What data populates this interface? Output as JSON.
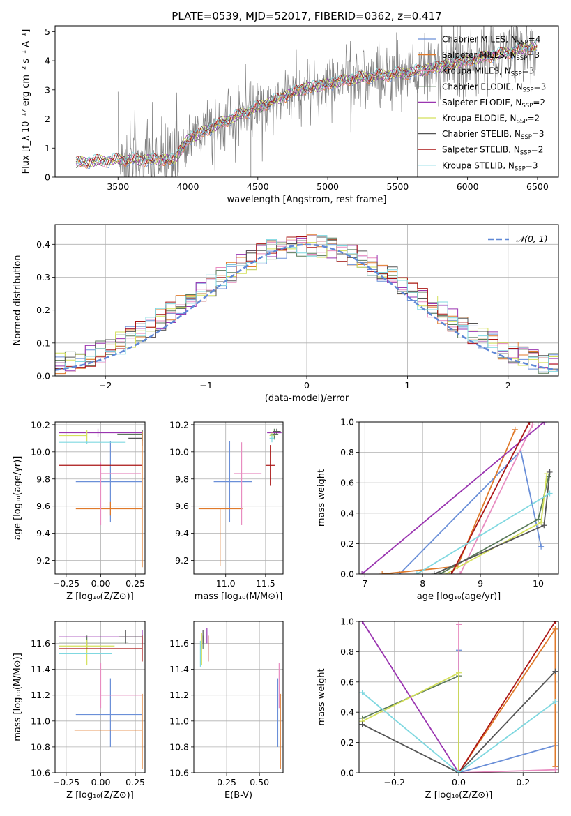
{
  "figure": {
    "title": "PLATE=0539, MJD=52017, FIBERID=0362, z=0.417"
  },
  "colors": {
    "Chabrier MILES": "#6a8fd8",
    "Salpeter MILES": "#e07a2a",
    "Kroupa MILES": "#e88cc0",
    "Chabrier ELODIE": "#5a7a5a",
    "Salpeter ELODIE": "#9a35b0",
    "Kroupa ELODIE": "#d4e05a",
    "Chabrier STELIB": "#555555",
    "Salpeter STELIB": "#aa1515",
    "Kroupa STELIB": "#7fd8e0",
    "data": "#808080",
    "normal": "#5f88d6"
  },
  "chart_data": [
    {
      "id": "spectrum",
      "type": "line",
      "xlabel": "wavelength [Angstrom, rest frame]",
      "ylabel": "Flux [f_λ 10⁻¹⁷ erg cm⁻² s⁻¹ A⁻¹]",
      "xlim": [
        3050,
        6650
      ],
      "ylim": [
        0,
        5.2
      ],
      "xticks": [
        3500,
        4000,
        4500,
        5000,
        5500,
        6000,
        6500
      ],
      "yticks": [
        0,
        1,
        2,
        3,
        4,
        5
      ],
      "grid": false,
      "legend_position": "top-right",
      "legend": [
        "Chabrier MILES, N_SSP=4",
        "Salpeter MILES, N_SSP=3",
        "Kroupa MILES, N_SSP=3",
        "Chabrier ELODIE, N_SSP=3",
        "Salpeter ELODIE, N_SSP=2",
        "Kroupa ELODIE, N_SSP=2",
        "Chabrier STELIB, N_SSP=3",
        "Salpeter STELIB, N_SSP=2",
        "Kroupa STELIB, N_SSP=3"
      ],
      "model_continuum": {
        "x": [
          3200,
          3500,
          3900,
          4000,
          4300,
          4800,
          5200,
          5600,
          6000,
          6300,
          6500
        ],
        "y": [
          0.5,
          0.6,
          0.6,
          1.3,
          2.0,
          3.0,
          3.4,
          3.6,
          4.0,
          4.3,
          4.5
        ]
      }
    },
    {
      "id": "residuals",
      "type": "histogram",
      "xlabel": "(data-model)/error",
      "ylabel": "Normed distribution",
      "xlim": [
        -2.5,
        2.5
      ],
      "ylim": [
        0,
        0.46
      ],
      "xticks": [
        -2,
        -1,
        0,
        1,
        2
      ],
      "yticks": [
        0.0,
        0.1,
        0.2,
        0.3,
        0.4
      ],
      "grid": true,
      "legend": [
        "𝒩(0, 1)"
      ],
      "legend_position": "top-right",
      "bin_width": 0.1
    },
    {
      "id": "age-vs-Z",
      "type": "errorbar",
      "xlabel": "Z [log₁₀(Z/Z⊙)]",
      "ylabel": "age  [log₁₀(age/yr)]",
      "xlim": [
        -0.33,
        0.32
      ],
      "ylim": [
        9.1,
        10.22
      ],
      "xticks": [
        -0.25,
        0.0,
        0.25
      ],
      "yticks": [
        9.2,
        9.4,
        9.6,
        9.8,
        10.0,
        10.2
      ],
      "grid": true,
      "points": [
        {
          "x": 0.07,
          "y": 9.78,
          "xe": [
            0.25,
            0.23
          ],
          "ye": [
            0.3,
            0.3
          ],
          "series": "Chabrier MILES"
        },
        {
          "x": 0.07,
          "y": 9.58,
          "xe": [
            0.25,
            0.23
          ],
          "ye": [
            0.05,
            0.05
          ],
          "series": "Salpeter MILES"
        },
        {
          "x": 0.0,
          "y": 9.84,
          "xe": [
            0.0,
            0.29
          ],
          "ye": [
            0.38,
            0.08
          ],
          "series": "Kroupa MILES"
        },
        {
          "x": 0.3,
          "y": 10.13,
          "xe": [
            0.18,
            0.0
          ],
          "ye": [
            0.05,
            0.03
          ],
          "series": "Chabrier ELODIE"
        },
        {
          "x": -0.02,
          "y": 10.14,
          "xe": [
            0.28,
            0.32
          ],
          "ye": [
            0.03,
            0.03
          ],
          "series": "Salpeter ELODIE"
        },
        {
          "x": -0.1,
          "y": 10.12,
          "xe": [
            0.2,
            0.0
          ],
          "ye": [
            0.04,
            0.04
          ],
          "series": "Kroupa ELODIE"
        },
        {
          "x": 0.3,
          "y": 10.1,
          "xe": [
            0.1,
            0.0
          ],
          "ye": [
            0.06,
            0.06
          ],
          "series": "Chabrier STELIB"
        },
        {
          "x": 0.0,
          "y": 9.9,
          "xe": [
            0.3,
            0.3
          ],
          "ye": [
            0.0,
            0.0
          ],
          "series": "Salpeter STELIB"
        },
        {
          "x": -0.1,
          "y": 10.07,
          "xe": [
            0.2,
            0.28
          ],
          "ye": [
            0.01,
            0.01
          ],
          "series": "Kroupa STELIB"
        },
        {
          "x": 0.3,
          "y": 9.95,
          "xe": [
            0.0,
            0.0
          ],
          "ye": [
            0.8,
            0.2
          ],
          "series": "Salpeter MILES"
        }
      ]
    },
    {
      "id": "age-vs-mass",
      "type": "errorbar",
      "xlabel": "mass [log₁₀(M/M⊙)]",
      "ylabel": "",
      "xlim": [
        10.6,
        11.72
      ],
      "ylim": [
        9.1,
        10.22
      ],
      "xticks": [
        11.0,
        11.5
      ],
      "yticks": [
        9.2,
        9.4,
        9.6,
        9.8,
        10.0,
        10.2
      ],
      "grid": true,
      "points": [
        {
          "x": 11.05,
          "y": 9.78,
          "xe": [
            0.2,
            0.28
          ],
          "ye": [
            0.3,
            0.3
          ],
          "series": "Chabrier MILES"
        },
        {
          "x": 10.93,
          "y": 9.58,
          "xe": [
            0.27,
            0.28
          ],
          "ye": [
            0.42,
            0.0
          ],
          "series": "Salpeter MILES"
        },
        {
          "x": 11.2,
          "y": 9.84,
          "xe": [
            0.1,
            0.25
          ],
          "ye": [
            0.38,
            0.23
          ],
          "series": "Kroupa MILES"
        },
        {
          "x": 11.61,
          "y": 10.13,
          "xe": [
            0.05,
            0.05
          ],
          "ye": [
            0.04,
            0.04
          ],
          "series": "Chabrier ELODIE"
        },
        {
          "x": 11.62,
          "y": 10.14,
          "xe": [
            0.1,
            0.08
          ],
          "ye": [
            0.01,
            0.01
          ],
          "series": "Salpeter ELODIE"
        },
        {
          "x": 11.58,
          "y": 10.12,
          "xe": [
            0.03,
            0.03
          ],
          "ye": [
            0.02,
            0.02
          ],
          "series": "Kroupa ELODIE"
        },
        {
          "x": 11.64,
          "y": 10.15,
          "xe": [
            0.05,
            0.05
          ],
          "ye": [
            0.02,
            0.02
          ],
          "series": "Chabrier STELIB"
        },
        {
          "x": 11.56,
          "y": 9.9,
          "xe": [
            0.06,
            0.06
          ],
          "ye": [
            0.15,
            0.15
          ],
          "series": "Salpeter STELIB"
        },
        {
          "x": 11.58,
          "y": 10.1,
          "xe": [
            0.03,
            0.03
          ],
          "ye": [
            0.03,
            0.03
          ],
          "series": "Kroupa STELIB"
        }
      ]
    },
    {
      "id": "mass-weight-vs-age",
      "type": "line",
      "xlabel": "age  [log₁₀(age/yr)]",
      "ylabel": "mass weight",
      "xlim": [
        6.9,
        10.35
      ],
      "ylim": [
        0,
        1.0
      ],
      "xticks": [
        7,
        8,
        9,
        10
      ],
      "yticks": [
        0.0,
        0.2,
        0.4,
        0.6,
        0.8,
        1.0
      ],
      "grid": true,
      "series": [
        {
          "series": "Chabrier MILES",
          "x": [
            7.6,
            9.7,
            10.05
          ],
          "y": [
            0.0,
            0.81,
            0.18
          ]
        },
        {
          "series": "Salpeter MILES",
          "x": [
            7.3,
            8.6,
            9.6
          ],
          "y": [
            0.0,
            0.05,
            0.95
          ]
        },
        {
          "series": "Kroupa MILES",
          "x": [
            8.65,
            9.9
          ],
          "y": [
            0.0,
            0.98
          ]
        },
        {
          "series": "Chabrier ELODIE",
          "x": [
            8.3,
            10.0,
            10.18
          ],
          "y": [
            0.0,
            0.36,
            0.64
          ]
        },
        {
          "series": "Salpeter ELODIE",
          "x": [
            6.95,
            10.1
          ],
          "y": [
            0.0,
            1.0
          ]
        },
        {
          "series": "Kroupa ELODIE",
          "x": [
            8.4,
            10.05,
            10.15
          ],
          "y": [
            0.0,
            0.34,
            0.66
          ]
        },
        {
          "series": "Chabrier STELIB",
          "x": [
            8.2,
            10.1,
            10.2
          ],
          "y": [
            0.0,
            0.32,
            0.67
          ]
        },
        {
          "series": "Salpeter STELIB",
          "x": [
            8.5,
            9.85
          ],
          "y": [
            0.0,
            1.0
          ]
        },
        {
          "series": "Kroupa STELIB",
          "x": [
            7.9,
            10.2
          ],
          "y": [
            0.0,
            0.53
          ]
        }
      ]
    },
    {
      "id": "mass-vs-Z",
      "type": "errorbar",
      "xlabel": "Z [log₁₀(Z/Z⊙)]",
      "ylabel": "mass [log₁₀(M/M⊙)]",
      "xlim": [
        -0.33,
        0.32
      ],
      "ylim": [
        10.6,
        11.77
      ],
      "xticks": [
        -0.25,
        0.0,
        0.25
      ],
      "yticks": [
        10.6,
        10.8,
        11.0,
        11.2,
        11.4,
        11.6
      ],
      "grid": true,
      "points": [
        {
          "x": 0.07,
          "y": 11.05,
          "xe": [
            0.25,
            0.23
          ],
          "ye": [
            0.25,
            0.28
          ],
          "series": "Chabrier MILES"
        },
        {
          "x": 0.0,
          "y": 10.93,
          "xe": [
            0.19,
            0.3
          ],
          "ye": [
            0.0,
            0.0
          ],
          "series": "Salpeter MILES"
        },
        {
          "x": 0.0,
          "y": 11.2,
          "xe": [
            0.0,
            0.3
          ],
          "ye": [
            0.1,
            0.25
          ],
          "series": "Kroupa MILES"
        },
        {
          "x": -0.1,
          "y": 11.61,
          "xe": [
            0.2,
            0.3
          ],
          "ye": [
            0.05,
            0.05
          ],
          "series": "Chabrier ELODIE"
        },
        {
          "x": 0.3,
          "y": 11.65,
          "xe": [
            0.6,
            0.0
          ],
          "ye": [
            0.05,
            0.05
          ],
          "series": "Salpeter ELODIE"
        },
        {
          "x": -0.1,
          "y": 11.58,
          "xe": [
            0.2,
            0.2
          ],
          "ye": [
            0.15,
            0.05
          ],
          "series": "Kroupa ELODIE"
        },
        {
          "x": 0.18,
          "y": 11.65,
          "xe": [
            0.05,
            0.12
          ],
          "ye": [
            0.05,
            0.05
          ],
          "series": "Chabrier STELIB"
        },
        {
          "x": 0.3,
          "y": 11.56,
          "xe": [
            0.6,
            0.0
          ],
          "ye": [
            0.1,
            0.1
          ],
          "series": "Salpeter STELIB"
        },
        {
          "x": 0.0,
          "y": 11.52,
          "xe": [
            0.3,
            0.08
          ],
          "ye": [
            0.0,
            0.0
          ],
          "series": "Kroupa STELIB"
        },
        {
          "x": 0.3,
          "y": 10.93,
          "xe": [
            0.0,
            0.0
          ],
          "ye": [
            0.3,
            0.28
          ],
          "series": "Salpeter MILES"
        }
      ]
    },
    {
      "id": "mass-vs-EBV",
      "type": "errorbar",
      "xlabel": "E(B-V)",
      "ylabel": "",
      "xlim": [
        0.0,
        0.68
      ],
      "ylim": [
        10.6,
        11.77
      ],
      "xticks": [
        0.25,
        0.5
      ],
      "yticks": [
        10.6,
        10.8,
        11.0,
        11.2,
        11.4,
        11.6
      ],
      "grid": true,
      "points": [
        {
          "x": 0.64,
          "y": 11.05,
          "xe": [
            0,
            0
          ],
          "ye": [
            0.25,
            0.28
          ],
          "series": "Chabrier MILES"
        },
        {
          "x": 0.66,
          "y": 10.93,
          "xe": [
            0,
            0
          ],
          "ye": [
            0.3,
            0.28
          ],
          "series": "Salpeter MILES"
        },
        {
          "x": 0.65,
          "y": 11.2,
          "xe": [
            0,
            0
          ],
          "ye": [
            0.1,
            0.25
          ],
          "series": "Kroupa MILES"
        },
        {
          "x": 0.07,
          "y": 11.61,
          "xe": [
            0,
            0
          ],
          "ye": [
            0.05,
            0.05
          ],
          "series": "Chabrier ELODIE"
        },
        {
          "x": 0.1,
          "y": 11.65,
          "xe": [
            0,
            0
          ],
          "ye": [
            0.05,
            0.07
          ],
          "series": "Salpeter ELODIE"
        },
        {
          "x": 0.06,
          "y": 11.58,
          "xe": [
            0,
            0
          ],
          "ye": [
            0.15,
            0.1
          ],
          "series": "Kroupa ELODIE"
        },
        {
          "x": 0.07,
          "y": 11.65,
          "xe": [
            0,
            0
          ],
          "ye": [
            0.05,
            0.05
          ],
          "series": "Chabrier STELIB"
        },
        {
          "x": 0.11,
          "y": 11.56,
          "xe": [
            0,
            0
          ],
          "ye": [
            0.1,
            0.1
          ],
          "series": "Salpeter STELIB"
        },
        {
          "x": 0.05,
          "y": 11.52,
          "xe": [
            0,
            0
          ],
          "ye": [
            0.1,
            0.1
          ],
          "series": "Kroupa STELIB"
        }
      ]
    },
    {
      "id": "mass-weight-vs-Z",
      "type": "line",
      "xlabel": "Z [log₁₀(Z/Z⊙)]",
      "ylabel": "mass weight",
      "xlim": [
        -0.31,
        0.31
      ],
      "ylim": [
        0,
        1.0
      ],
      "xticks": [
        -0.2,
        0.0,
        0.2
      ],
      "yticks": [
        0.0,
        0.2,
        0.4,
        0.6,
        0.8,
        1.0
      ],
      "grid": true,
      "series": [
        {
          "series": "Chabrier MILES",
          "x": [
            0.0,
            0.0,
            0.3
          ],
          "y": [
            0.81,
            0.0,
            0.18
          ]
        },
        {
          "series": "Salpeter MILES",
          "x": [
            0.0,
            0.3,
            0.3
          ],
          "y": [
            0.0,
            0.95,
            0.04
          ]
        },
        {
          "series": "Kroupa MILES",
          "x": [
            0.0,
            0.0,
            0.3
          ],
          "y": [
            0.98,
            0.0,
            0.02
          ]
        },
        {
          "series": "Chabrier ELODIE",
          "x": [
            -0.3,
            0.0,
            0.0
          ],
          "y": [
            0.36,
            0.64,
            0.0
          ]
        },
        {
          "series": "Salpeter ELODIE",
          "x": [
            -0.3,
            0.0
          ],
          "y": [
            1.0,
            0.0
          ]
        },
        {
          "series": "Kroupa ELODIE",
          "x": [
            -0.3,
            0.0,
            0.0
          ],
          "y": [
            0.34,
            0.66,
            0.0
          ]
        },
        {
          "series": "Chabrier STELIB",
          "x": [
            -0.3,
            0.0,
            0.3
          ],
          "y": [
            0.32,
            0.0,
            0.67
          ]
        },
        {
          "series": "Salpeter STELIB",
          "x": [
            0.0,
            0.3
          ],
          "y": [
            0.0,
            1.0
          ]
        },
        {
          "series": "Kroupa STELIB",
          "x": [
            -0.3,
            0.0,
            0.3
          ],
          "y": [
            0.53,
            0.0,
            0.47
          ]
        }
      ]
    }
  ]
}
